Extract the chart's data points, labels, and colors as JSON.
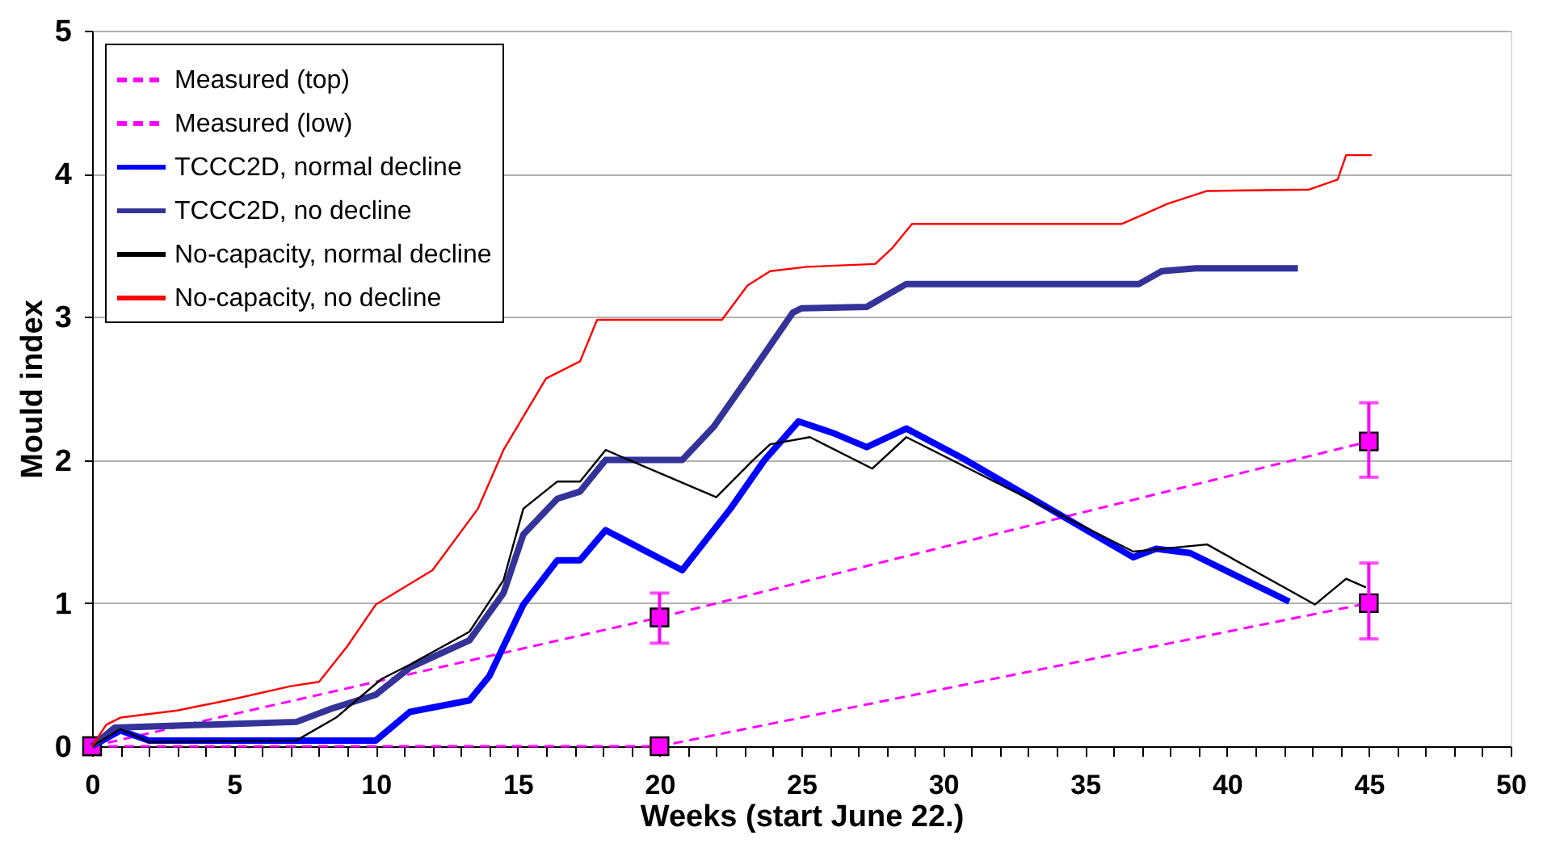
{
  "chart_data": {
    "type": "line",
    "xlabel": "Weeks  (start June 22.)",
    "ylabel": "Mould index",
    "xlim": [
      0,
      50
    ],
    "ylim": [
      0,
      5
    ],
    "yticks": [
      0,
      1,
      2,
      3,
      4,
      5
    ],
    "xticks": [
      0,
      {
        "value": 1,
        "label": null
      },
      {
        "value": 2,
        "label": null
      },
      {
        "value": 3,
        "label": null
      },
      {
        "value": 4,
        "label": null
      },
      5,
      {
        "value": 6,
        "label": null
      },
      {
        "value": 7,
        "label": null
      },
      {
        "value": 8,
        "label": null
      },
      {
        "value": 9,
        "label": null
      },
      10,
      {
        "value": 11,
        "label": null
      },
      {
        "value": 12,
        "label": null
      },
      {
        "value": 13,
        "label": null
      },
      {
        "value": 14,
        "label": null
      },
      15,
      {
        "value": 16,
        "label": null
      },
      {
        "value": 17,
        "label": null
      },
      {
        "value": 18,
        "label": null
      },
      {
        "value": 19,
        "label": null
      },
      20,
      {
        "value": 21,
        "label": null
      },
      {
        "value": 22,
        "label": null
      },
      {
        "value": 23,
        "label": null
      },
      {
        "value": 24,
        "label": null
      },
      25,
      {
        "value": 26,
        "label": null
      },
      {
        "value": 27,
        "label": null
      },
      {
        "value": 28,
        "label": null
      },
      {
        "value": 29,
        "label": null
      },
      30,
      {
        "value": 31,
        "label": null
      },
      {
        "value": 32,
        "label": null
      },
      {
        "value": 33,
        "label": null
      },
      {
        "value": 34,
        "label": null
      },
      35,
      {
        "value": 36,
        "label": null
      },
      {
        "value": 37,
        "label": null
      },
      {
        "value": 38,
        "label": null
      },
      {
        "value": 39,
        "label": null
      },
      40,
      {
        "value": 41,
        "label": null
      },
      {
        "value": 42,
        "label": null
      },
      {
        "value": 43,
        "label": null
      },
      {
        "value": 44,
        "label": null
      },
      45,
      {
        "value": 46,
        "label": null
      },
      {
        "value": 47,
        "label": null
      },
      {
        "value": 48,
        "label": null
      },
      {
        "value": 49,
        "label": null
      },
      50
    ],
    "grid": "y",
    "legend": "top left",
    "series": [
      {
        "name": "Measured (top)",
        "color": "#ff00ff",
        "line_style": "dashed",
        "marker": "square",
        "x": [
          0,
          20,
          45
        ],
        "values": [
          0,
          0.9,
          2.13
        ],
        "errors": [
          null,
          [
            0.72,
            1.07
          ],
          [
            1.88,
            2.4
          ]
        ]
      },
      {
        "name": "Measured (low)",
        "color": "#ff00ff",
        "line_style": "dashed",
        "marker": "square",
        "x": [
          0,
          20,
          45
        ],
        "values": [
          0,
          0,
          1.0
        ],
        "errors": [
          null,
          null,
          [
            0.75,
            1.28
          ]
        ]
      },
      {
        "name": "TCCC2D, normal decline",
        "color": "#0000ff",
        "line_style": "solid",
        "marker": "none",
        "x": [
          0,
          1.0,
          2.0,
          10,
          11.2,
          13.3,
          14,
          15.2,
          16.4,
          17.2,
          18.1,
          20.8,
          22.5,
          23.7,
          24.9,
          26.1,
          27.3,
          28.7,
          30.7,
          36.7,
          37.5,
          38.7,
          42.2
        ],
        "values": [
          0,
          0.11,
          0.04,
          0.04,
          0.24,
          0.32,
          0.49,
          0.99,
          1.3,
          1.3,
          1.51,
          1.23,
          1.66,
          2.0,
          2.27,
          2.19,
          2.09,
          2.22,
          2.01,
          1.32,
          1.38,
          1.35,
          1.01
        ]
      },
      {
        "name": "TCCC2D, no decline",
        "color": "#333399",
        "line_style": "solid",
        "marker": "none",
        "x": [
          0,
          0.8,
          7.2,
          8.4,
          10,
          11.2,
          13.3,
          14.5,
          15.2,
          16.4,
          17.2,
          18.1,
          20.8,
          21.9,
          23.1,
          24.7,
          25.0,
          27.3,
          28.7,
          36.9,
          37.7,
          38.9,
          42.5
        ],
        "values": [
          0,
          0.13,
          0.17,
          0.26,
          0.36,
          0.55,
          0.74,
          1.07,
          1.48,
          1.73,
          1.78,
          2.0,
          2.0,
          2.23,
          2.57,
          3.03,
          3.06,
          3.07,
          3.23,
          3.23,
          3.32,
          3.34,
          3.34
        ]
      },
      {
        "name": "No-capacity, normal decline",
        "color": "#000000",
        "line_style": "solid",
        "marker": "none",
        "x": [
          0,
          1,
          2,
          7.2,
          8.6,
          10.2,
          11.2,
          13.3,
          14.5,
          15.2,
          16.4,
          17.2,
          18.1,
          22.0,
          23.3,
          23.9,
          25.3,
          27.5,
          28.7,
          36.7,
          39.3,
          43.1,
          44.2,
          44.9
        ],
        "values": [
          0,
          0.12,
          0.03,
          0.04,
          0.2,
          0.47,
          0.57,
          0.8,
          1.16,
          1.66,
          1.85,
          1.85,
          2.07,
          1.74,
          2.0,
          2.11,
          2.16,
          1.94,
          2.16,
          1.36,
          1.41,
          0.99,
          1.17,
          1.11
        ]
      },
      {
        "name": "No-capacity, no decline",
        "color": "#ff0000",
        "line_style": "solid",
        "marker": "none",
        "x": [
          0,
          0.5,
          1,
          3,
          5,
          7,
          8,
          9,
          10,
          12,
          13.6,
          14.5,
          16,
          17.2,
          17.8,
          22.2,
          23.1,
          23.9,
          25.2,
          27.6,
          28.2,
          28.9,
          36.3,
          37.1,
          37.9,
          39.3,
          42.9,
          43.9,
          44.2,
          45.1
        ],
        "values": [
          0,
          0.15,
          0.2,
          0.25,
          0.33,
          0.42,
          0.45,
          0.7,
          0.99,
          1.23,
          1.66,
          2.07,
          2.57,
          2.69,
          2.98,
          2.98,
          3.22,
          3.32,
          3.35,
          3.37,
          3.48,
          3.65,
          3.65,
          3.72,
          3.79,
          3.88,
          3.89,
          3.96,
          4.13,
          4.13
        ]
      }
    ]
  }
}
